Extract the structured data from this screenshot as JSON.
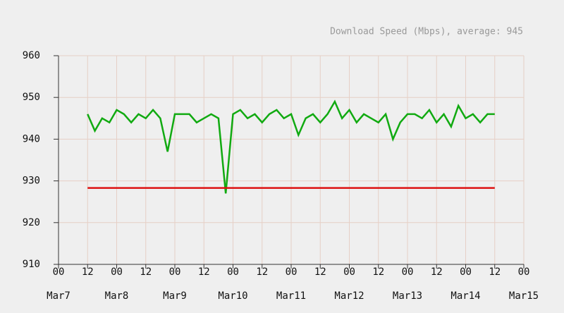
{
  "chart_data": {
    "type": "line",
    "title": "Download Speed (Mbps), average: 945",
    "x": [
      12,
      15,
      18,
      21,
      24,
      27,
      30,
      33,
      36,
      39,
      42,
      45,
      48,
      51,
      54,
      57,
      60,
      63,
      66,
      69,
      72,
      75,
      78,
      81,
      84,
      87,
      90,
      93,
      96,
      99,
      102,
      105,
      108,
      111,
      114,
      117,
      120,
      123,
      126,
      129,
      132,
      135,
      138,
      141,
      144,
      147,
      150,
      153,
      156,
      159,
      162,
      165,
      168,
      171,
      174,
      177,
      180
    ],
    "series": [
      {
        "color": "#11aa11",
        "values": [
          946,
          942,
          945,
          944,
          947,
          946,
          944,
          946,
          945,
          947,
          945,
          937,
          946,
          946,
          946,
          944,
          945,
          946,
          945,
          927,
          946,
          947,
          945,
          946,
          944,
          946,
          947,
          945,
          946,
          941,
          945,
          946,
          944,
          946,
          949,
          945,
          947,
          944,
          946,
          945,
          944,
          946,
          940,
          944,
          946,
          946,
          945,
          947,
          944,
          946,
          943,
          948,
          945,
          946,
          944,
          946,
          946
        ]
      },
      {
        "color": "#dd1111",
        "x": [
          12,
          180
        ],
        "values": [
          928.3,
          928.3
        ]
      }
    ],
    "xlim": [
      0,
      192
    ],
    "xticks": [
      {
        "value": 0,
        "label": "00",
        "date": "Mar7"
      },
      {
        "value": 12,
        "label": "12"
      },
      {
        "value": 24,
        "label": "00",
        "date": "Mar8"
      },
      {
        "value": 36,
        "label": "12"
      },
      {
        "value": 48,
        "label": "00",
        "date": "Mar9"
      },
      {
        "value": 60,
        "label": "12"
      },
      {
        "value": 72,
        "label": "00",
        "date": "Mar10"
      },
      {
        "value": 84,
        "label": "12"
      },
      {
        "value": 96,
        "label": "00",
        "date": "Mar11"
      },
      {
        "value": 108,
        "label": "12"
      },
      {
        "value": 120,
        "label": "00",
        "date": "Mar12"
      },
      {
        "value": 132,
        "label": "12"
      },
      {
        "value": 144,
        "label": "00",
        "date": "Mar13"
      },
      {
        "value": 156,
        "label": "12"
      },
      {
        "value": 168,
        "label": "00",
        "date": "Mar14"
      },
      {
        "value": 180,
        "label": "12"
      },
      {
        "value": 192,
        "label": "00",
        "date": "Mar15"
      }
    ],
    "ylim": [
      910,
      960
    ],
    "yticks": [
      910,
      920,
      930,
      940,
      950,
      960
    ],
    "grid": true
  }
}
